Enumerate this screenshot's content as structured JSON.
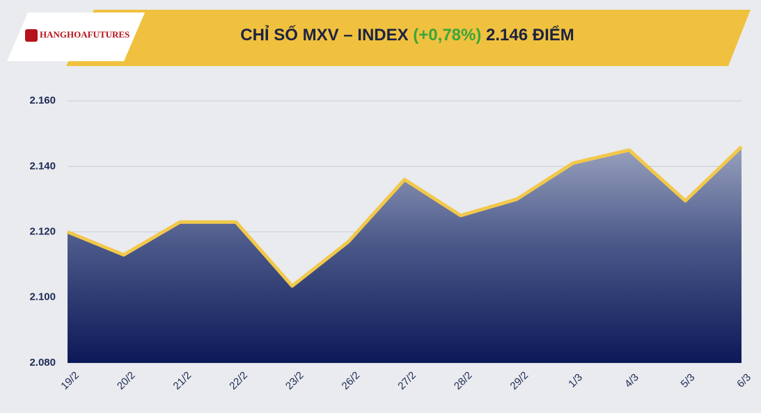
{
  "logo": "HANGHOAFUTURES",
  "chart_data": {
    "type": "area",
    "title": {
      "main": "CHỈ SỐ MXV – INDEX",
      "change": "(+0,78%)",
      "level": "2.146 ĐIỂM"
    },
    "categories": [
      "19/2",
      "20/2",
      "21/2",
      "22/2",
      "23/2",
      "26/2",
      "27/2",
      "28/2",
      "29/2",
      "1/3",
      "4/3",
      "5/3",
      "6/3"
    ],
    "values": [
      2120,
      2113,
      2123,
      2123,
      2103.5,
      2117,
      2136,
      2125,
      2130,
      2141,
      2145,
      2129.5,
      2146
    ],
    "color": "#f2c84b",
    "ylim": [
      2080,
      2170
    ],
    "yticks": [
      {
        "value": 2080,
        "label": "2.080"
      },
      {
        "value": 2100,
        "label": "2.100"
      },
      {
        "value": 2120,
        "label": "2.120"
      },
      {
        "value": 2140,
        "label": "2.140"
      },
      {
        "value": 2160,
        "label": "2.160"
      }
    ],
    "grid": true
  }
}
